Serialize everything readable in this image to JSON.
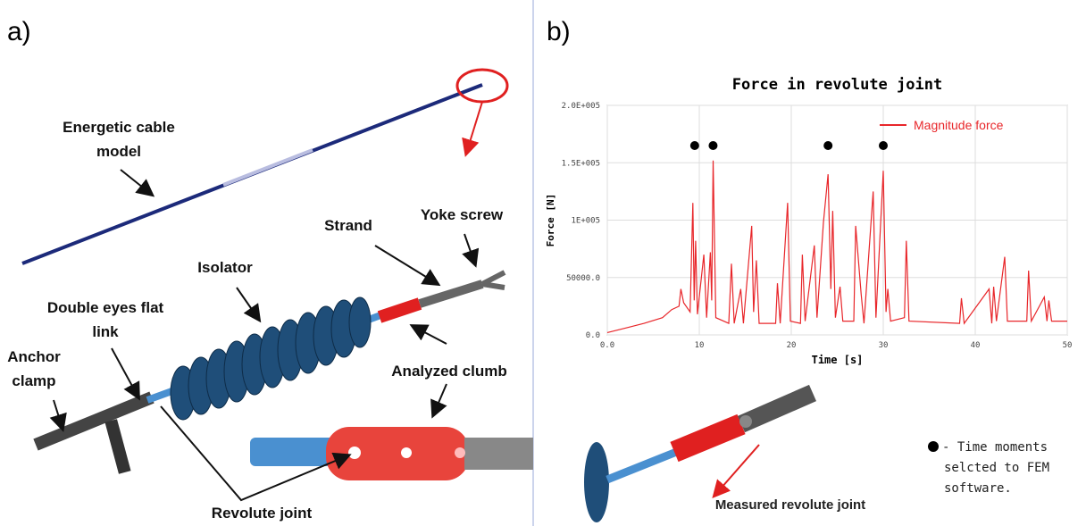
{
  "panel_a": {
    "label": "a)",
    "annotations": [
      {
        "lines": [
          "Energetic cable",
          "model"
        ]
      },
      {
        "lines": [
          "Strand"
        ]
      },
      {
        "lines": [
          "Yoke screw"
        ]
      },
      {
        "lines": [
          "Isolator"
        ]
      },
      {
        "lines": [
          "Double eyes flat",
          "link"
        ]
      },
      {
        "lines": [
          "Anchor",
          "clamp"
        ]
      },
      {
        "lines": [
          "Analyzed clumb"
        ]
      },
      {
        "lines": [
          "Revolute joint"
        ]
      }
    ]
  },
  "panel_b": {
    "label": "b)",
    "caption": "Measured  revolute joint",
    "note": [
      "- Time moments",
      "selcted to FEM",
      "software."
    ]
  },
  "chart_data": {
    "type": "line",
    "title": "Force in revolute joint",
    "x_label": "Time [s]",
    "y_label": "Force [N]",
    "xlim": [
      0,
      50
    ],
    "ylim": [
      0,
      200000
    ],
    "xticks": [
      {
        "value": 0,
        "label": "0.0"
      },
      10,
      20,
      30,
      40,
      50
    ],
    "yticks": [
      {
        "value": 0,
        "label": "0.0"
      },
      {
        "value": 50000,
        "label": "50000.0"
      },
      {
        "value": 100000,
        "label": "1E+005"
      },
      {
        "value": 150000,
        "label": "1.5E+005"
      },
      {
        "value": 200000,
        "label": "2.0E+005"
      }
    ],
    "grid": true,
    "legend": "upper right",
    "series": [
      {
        "name": "Magnitude force",
        "color": "#e8262a",
        "x": [
          0,
          2,
          4,
          6,
          7,
          7.8,
          8.0,
          8.3,
          9.0,
          9.3,
          9.45,
          9.6,
          9.8,
          10.5,
          10.8,
          11.2,
          11.35,
          11.5,
          11.8,
          13.2,
          13.5,
          13.8,
          14.5,
          14.8,
          15.7,
          15.9,
          16.2,
          16.5,
          18.3,
          18.5,
          18.8,
          19.6,
          19.9,
          21,
          21.2,
          21.5,
          22.5,
          22.8,
          23.5,
          24,
          24.3,
          24.5,
          24.8,
          25.3,
          25.6,
          26.8,
          27,
          27.6,
          27.9,
          28.9,
          29.2,
          30,
          30.3,
          30.5,
          30.8,
          32.3,
          32.5,
          32.8,
          38.3,
          38.5,
          38.8,
          41.5,
          41.8,
          42,
          42.3,
          43.2,
          43.5,
          45.6,
          45.8,
          46.1,
          47.5,
          47.8,
          48,
          48.3,
          50
        ],
        "values": [
          2000,
          6000,
          10000,
          15000,
          22000,
          25000,
          40000,
          28000,
          20000,
          115000,
          30000,
          82000,
          18000,
          70000,
          15000,
          72000,
          30000,
          152000,
          15000,
          10000,
          62000,
          10000,
          40000,
          10000,
          95000,
          20000,
          65000,
          10000,
          10000,
          45000,
          10000,
          115000,
          12000,
          10000,
          70000,
          12000,
          78000,
          15000,
          98000,
          140000,
          40000,
          108000,
          15000,
          42000,
          12000,
          12000,
          95000,
          35000,
          10000,
          125000,
          15000,
          143000,
          20000,
          40000,
          12000,
          15000,
          82000,
          12000,
          10000,
          32000,
          10000,
          40000,
          10000,
          42000,
          12000,
          68000,
          12000,
          12000,
          56000,
          12000,
          33000,
          12000,
          30000,
          12000,
          12000
        ]
      }
    ],
    "moments": {
      "color": "#000000",
      "x": [
        9.5,
        11.5,
        24,
        30
      ],
      "values": [
        165000,
        165000,
        165000,
        165000
      ]
    }
  }
}
